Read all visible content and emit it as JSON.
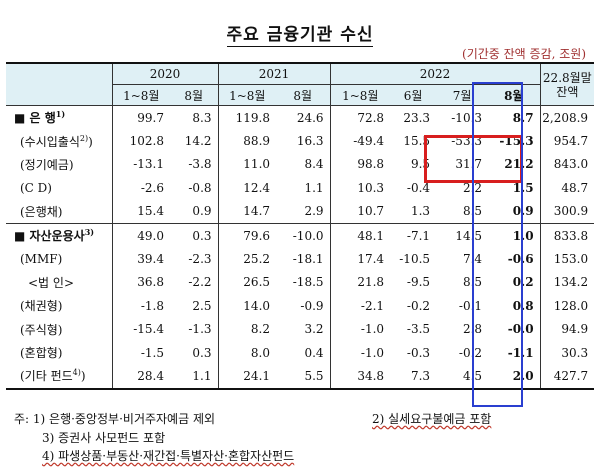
{
  "title": "주요 금융기관 수신",
  "unit": "(기간중 잔액 증감, 조원)",
  "header": {
    "y2020": "2020",
    "y2021": "2021",
    "y2022": "2022",
    "bal": "22.8월말 잔액",
    "jan_aug": "1~8월",
    "aug": "8월",
    "jun": "6월",
    "jul": "7월"
  },
  "rows": [
    {
      "label": "■ 은 행",
      "sup": "1)",
      "v": [
        "99.7",
        "8.3",
        "119.8",
        "24.6",
        "72.8",
        "23.3",
        "-10.3",
        "8.7",
        "2,208.9"
      ]
    },
    {
      "label": "(수시입출식",
      "sup": "2)",
      "suffix": ")",
      "v": [
        "102.8",
        "14.2",
        "88.9",
        "16.3",
        "-49.4",
        "15.5",
        "-53.3",
        "-15.3",
        "954.7"
      ]
    },
    {
      "label": "(정기예금)",
      "v": [
        "-13.1",
        "-3.8",
        "11.0",
        "8.4",
        "98.8",
        "9.5",
        "31.7",
        "21.2",
        "843.0"
      ]
    },
    {
      "label": "(C D)",
      "v": [
        "-2.6",
        "-0.8",
        "12.4",
        "1.1",
        "10.3",
        "-0.4",
        "2.2",
        "1.5",
        "48.7"
      ]
    },
    {
      "label": "(은행채)",
      "v": [
        "15.4",
        "0.9",
        "14.7",
        "2.9",
        "10.7",
        "1.3",
        "8.5",
        "0.9",
        "300.9"
      ]
    },
    {
      "label": "■ 자산운용사",
      "sup": "3)",
      "v": [
        "49.0",
        "0.3",
        "79.6",
        "-10.0",
        "48.1",
        "-7.1",
        "14.5",
        "1.0",
        "833.8"
      ]
    },
    {
      "label": "(MMF)",
      "v": [
        "39.4",
        "-2.3",
        "25.2",
        "-18.1",
        "17.4",
        "-10.5",
        "7.4",
        "-0.6",
        "153.0"
      ]
    },
    {
      "label": "<법 인>",
      "v": [
        "36.8",
        "-2.2",
        "26.5",
        "-18.5",
        "21.8",
        "-9.5",
        "8.5",
        "0.2",
        "134.2"
      ]
    },
    {
      "label": "(채권형)",
      "v": [
        "-1.8",
        "2.5",
        "14.0",
        "-0.9",
        "-2.1",
        "-0.2",
        "-0.1",
        "0.8",
        "128.0"
      ]
    },
    {
      "label": "(주식형)",
      "v": [
        "-15.4",
        "-1.3",
        "8.2",
        "3.2",
        "-1.0",
        "-3.5",
        "2.8",
        "-0.0",
        "94.9"
      ]
    },
    {
      "label": "(혼합형)",
      "v": [
        "-1.5",
        "0.3",
        "8.0",
        "0.4",
        "-1.0",
        "-0.3",
        "-0.2",
        "-1.1",
        "30.3"
      ]
    },
    {
      "label": "(기타 펀드",
      "sup": "4)",
      "suffix": ")",
      "v": [
        "28.4",
        "1.1",
        "24.1",
        "5.5",
        "34.8",
        "7.3",
        "4.5",
        "2.0",
        "427.7"
      ]
    }
  ],
  "notes": {
    "n1": "주: 1) 은행·중앙정부·비거주자예금 제외",
    "n2": "2) 실세요구불예금 포함",
    "n3": "3) 증권사 사모펀드 포함",
    "n4": "4) 파생상품·부동산·재간접·특별자산·혼합자산펀드"
  }
}
